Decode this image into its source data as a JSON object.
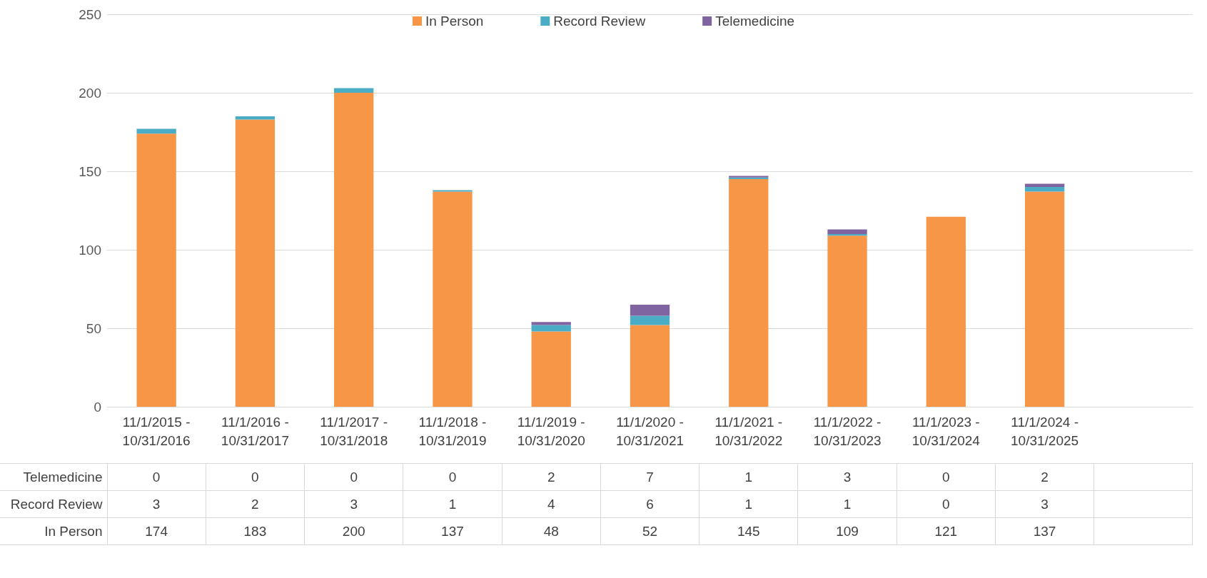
{
  "chart_data": {
    "type": "bar",
    "stacked": true,
    "categories": [
      "11/1/2015 - 10/31/2016",
      "11/1/2016 - 10/31/2017",
      "11/1/2017 - 10/31/2018",
      "11/1/2018 - 10/31/2019",
      "11/1/2019 - 10/31/2020",
      "11/1/2020 - 10/31/2021",
      "11/1/2021 - 10/31/2022",
      "11/1/2022 - 10/31/2023",
      "11/1/2023 - 10/31/2024",
      "11/1/2024 - 10/31/2025",
      null
    ],
    "series": [
      {
        "name": "In Person",
        "color": "#f79646",
        "values": [
          174,
          183,
          200,
          137,
          48,
          52,
          145,
          109,
          121,
          137,
          null
        ]
      },
      {
        "name": "Record Review",
        "color": "#4bacc6",
        "values": [
          3,
          2,
          3,
          1,
          4,
          6,
          1,
          1,
          0,
          3,
          null
        ]
      },
      {
        "name": "Telemedicine",
        "color": "#8064a2",
        "values": [
          0,
          0,
          0,
          0,
          2,
          7,
          1,
          3,
          0,
          2,
          null
        ]
      }
    ],
    "ylim": [
      0,
      250
    ],
    "yticks": [
      0,
      50,
      100,
      150,
      200,
      250
    ],
    "grid": "y",
    "legend": "top",
    "data_labels": true
  }
}
